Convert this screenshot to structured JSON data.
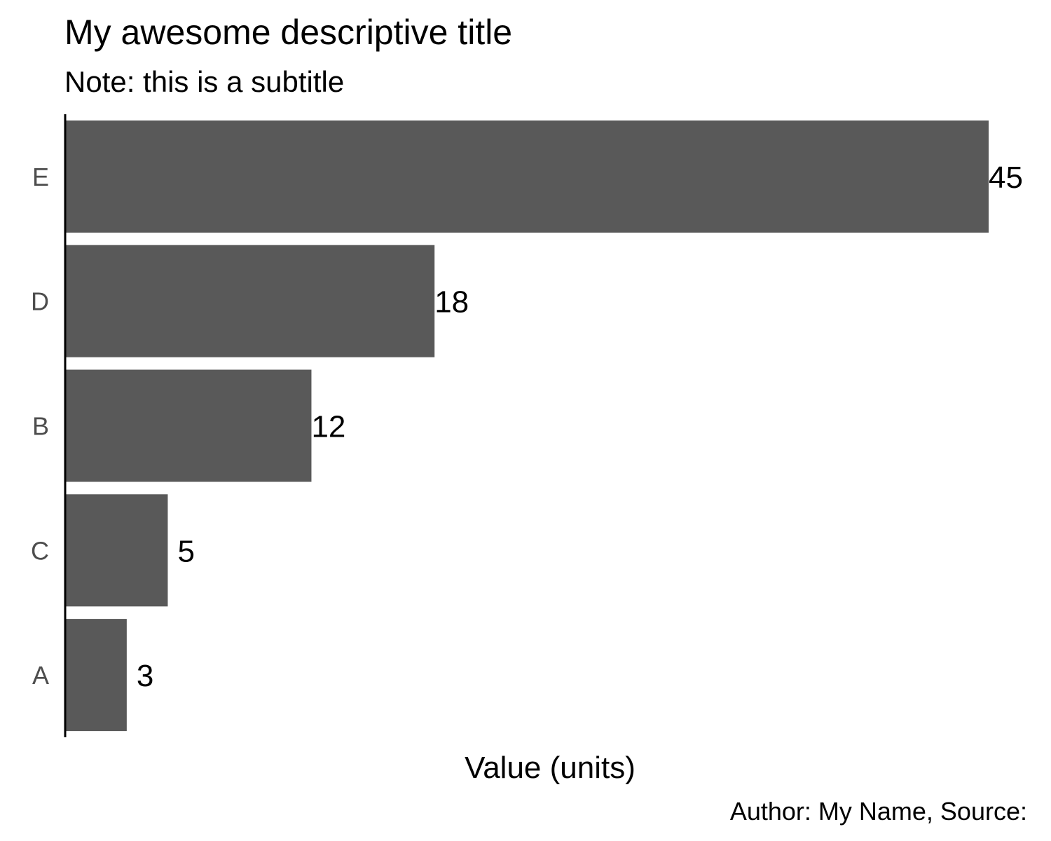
{
  "chart_data": {
    "type": "bar",
    "orientation": "horizontal",
    "title": "My awesome descriptive title",
    "subtitle": "Note: this is a subtitle",
    "xlabel": "Value (units)",
    "ylabel": "",
    "caption": "Author: My Name, Source:",
    "categories": [
      "E",
      "D",
      "B",
      "C",
      "A"
    ],
    "values": [
      45,
      18,
      12,
      5,
      3
    ],
    "data_labels": [
      "45",
      "18",
      "12",
      "5",
      "3"
    ],
    "xlim": [
      0,
      45
    ],
    "grid": false,
    "legend": "none",
    "bar_color": "#595959",
    "axis_color": "#000000"
  }
}
